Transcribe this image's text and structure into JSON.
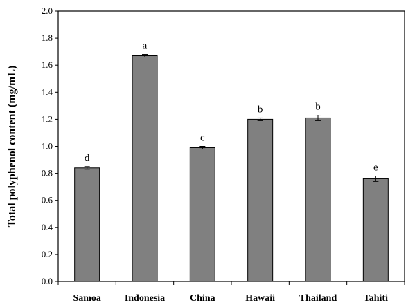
{
  "chart_data": {
    "type": "bar",
    "title": "",
    "xlabel": "",
    "ylabel": "Total polyphenol content (mg/mL)",
    "categories": [
      "Samoa",
      "Indonesia",
      "China",
      "Hawaii",
      "Thailand",
      "Tahiti"
    ],
    "values": [
      0.84,
      1.67,
      0.99,
      1.2,
      1.21,
      0.76
    ],
    "errors": [
      0.01,
      0.01,
      0.01,
      0.01,
      0.02,
      0.02
    ],
    "significance": [
      "d",
      "a",
      "c",
      "b",
      "b",
      "e"
    ],
    "ylim": [
      0,
      2.0
    ],
    "yticks": [
      "0.0",
      "0.2",
      "0.4",
      "0.6",
      "0.8",
      "1.0",
      "1.2",
      "1.4",
      "1.6",
      "1.8",
      "2.0"
    ],
    "grid": false,
    "legend": "none",
    "bar_color": "#808080",
    "bar_edge_color": "#000000"
  }
}
